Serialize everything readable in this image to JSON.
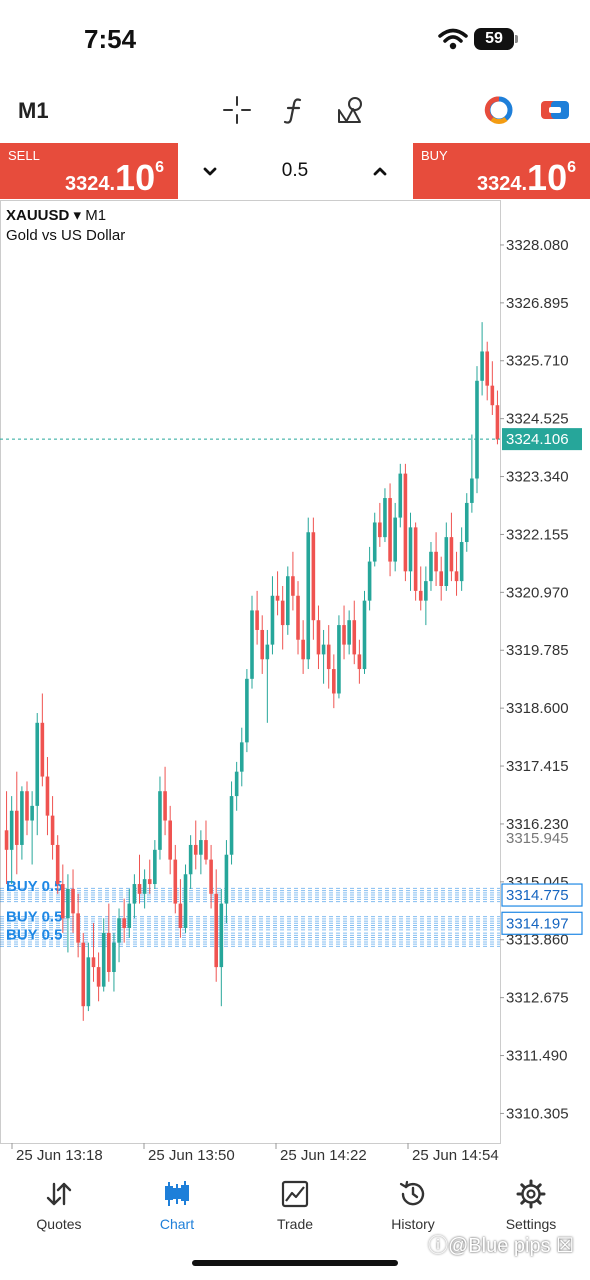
{
  "status_bar": {
    "time": "7:54",
    "battery": "59"
  },
  "toolbar": {
    "timeframe": "M1",
    "icons": [
      "crosshair-icon",
      "function-icon",
      "objects-icon",
      "account-icon",
      "trade-toggle-icon"
    ]
  },
  "trade_panel": {
    "sell": {
      "label": "SELL",
      "price_main": "3324.",
      "price_big": "10",
      "price_sup": "6"
    },
    "buy": {
      "label": "BUY",
      "price_main": "3324.",
      "price_big": "10",
      "price_sup": "6"
    },
    "lot": "0.5"
  },
  "chart": {
    "symbol": "XAUUSD",
    "symbol_arrow": "▾",
    "timeframe": "M1",
    "description": "Gold vs US Dollar",
    "current_price": "3324.106",
    "overlapped_price_label": "3315.945",
    "position_labels": [
      "BUY 0.5",
      "BUY 0.5",
      "BUY 0.5"
    ],
    "colors": {
      "up": "#26a69a",
      "down": "#ef5350",
      "position": "#1e88e5",
      "grid_border": "#cccccc"
    }
  },
  "chart_data": {
    "type": "candlestick",
    "y_tick_labels": [
      "3328.080",
      "3326.895",
      "3325.710",
      "3324.525",
      "3323.340",
      "3322.155",
      "3320.970",
      "3319.785",
      "3318.600",
      "3317.415",
      "3316.230",
      "3315.045",
      "3313.860",
      "3312.675",
      "3311.490",
      "3310.305"
    ],
    "x_tick_labels": [
      "25 Jun 13:18",
      "25 Jun 13:50",
      "25 Jun 14:22",
      "25 Jun 14:54"
    ],
    "ylim": [
      3309.7,
      3329.0
    ],
    "bid_price": 3324.106,
    "position_prices": [
      3314.775,
      3314.197,
      3313.86
    ],
    "highlighted_prices": [
      3314.775,
      3314.197
    ],
    "ohlc": [
      [
        3316.1,
        3316.9,
        3315.0,
        3315.7
      ],
      [
        3315.7,
        3316.8,
        3315.0,
        3316.5
      ],
      [
        3316.5,
        3317.3,
        3315.2,
        3315.8
      ],
      [
        3315.8,
        3317.0,
        3315.5,
        3316.9
      ],
      [
        3316.9,
        3317.1,
        3316.0,
        3316.3
      ],
      [
        3316.3,
        3316.9,
        3315.4,
        3316.6
      ],
      [
        3316.6,
        3318.5,
        3316.0,
        3318.3
      ],
      [
        3318.3,
        3318.9,
        3317.0,
        3317.2
      ],
      [
        3317.2,
        3317.6,
        3316.0,
        3316.4
      ],
      [
        3316.4,
        3316.8,
        3315.5,
        3315.8
      ],
      [
        3315.8,
        3316.0,
        3314.8,
        3315.0
      ],
      [
        3315.0,
        3315.4,
        3314.0,
        3314.3
      ],
      [
        3314.3,
        3315.2,
        3313.6,
        3314.9
      ],
      [
        3314.9,
        3315.3,
        3314.0,
        3314.4
      ],
      [
        3314.4,
        3314.8,
        3313.5,
        3313.8
      ],
      [
        3313.8,
        3314.0,
        3312.2,
        3312.5
      ],
      [
        3312.5,
        3313.8,
        3312.4,
        3313.5
      ],
      [
        3313.5,
        3314.2,
        3313.0,
        3313.3
      ],
      [
        3313.3,
        3313.6,
        3312.6,
        3312.9
      ],
      [
        3312.9,
        3314.3,
        3312.8,
        3314.0
      ],
      [
        3314.0,
        3314.6,
        3313.0,
        3313.2
      ],
      [
        3313.2,
        3314.0,
        3312.8,
        3313.8
      ],
      [
        3313.8,
        3314.5,
        3313.4,
        3314.3
      ],
      [
        3314.3,
        3314.7,
        3313.8,
        3314.1
      ],
      [
        3314.1,
        3314.9,
        3313.9,
        3314.6
      ],
      [
        3314.6,
        3315.2,
        3314.3,
        3315.0
      ],
      [
        3315.0,
        3315.6,
        3314.6,
        3314.8
      ],
      [
        3314.8,
        3315.3,
        3314.5,
        3315.1
      ],
      [
        3315.1,
        3315.5,
        3314.8,
        3315.0
      ],
      [
        3315.0,
        3315.9,
        3314.9,
        3315.7
      ],
      [
        3315.7,
        3317.2,
        3315.5,
        3316.9
      ],
      [
        3316.9,
        3317.4,
        3316.0,
        3316.3
      ],
      [
        3316.3,
        3316.6,
        3315.2,
        3315.5
      ],
      [
        3315.5,
        3315.8,
        3314.4,
        3314.6
      ],
      [
        3314.6,
        3315.1,
        3313.9,
        3314.1
      ],
      [
        3314.1,
        3315.4,
        3314.0,
        3315.2
      ],
      [
        3315.2,
        3316.0,
        3314.9,
        3315.8
      ],
      [
        3315.8,
        3316.3,
        3315.3,
        3315.6
      ],
      [
        3315.6,
        3316.1,
        3315.2,
        3315.9
      ],
      [
        3315.9,
        3316.3,
        3315.4,
        3315.5
      ],
      [
        3315.5,
        3315.8,
        3314.5,
        3314.8
      ],
      [
        3314.8,
        3315.3,
        3313.0,
        3313.3
      ],
      [
        3313.3,
        3314.9,
        3312.5,
        3314.6
      ],
      [
        3314.6,
        3315.9,
        3314.2,
        3315.6
      ],
      [
        3315.6,
        3317.1,
        3315.4,
        3316.8
      ],
      [
        3316.8,
        3317.5,
        3316.5,
        3317.3
      ],
      [
        3317.3,
        3318.2,
        3317.0,
        3317.9
      ],
      [
        3317.9,
        3319.4,
        3317.7,
        3319.2
      ],
      [
        3319.2,
        3320.9,
        3319.0,
        3320.6
      ],
      [
        3320.6,
        3321.0,
        3319.9,
        3320.2
      ],
      [
        3320.2,
        3320.5,
        3319.3,
        3319.6
      ],
      [
        3319.6,
        3320.2,
        3318.3,
        3319.9
      ],
      [
        3319.9,
        3321.3,
        3319.7,
        3320.9
      ],
      [
        3320.9,
        3321.4,
        3320.5,
        3320.8
      ],
      [
        3320.8,
        3321.1,
        3319.8,
        3320.3
      ],
      [
        3320.3,
        3321.5,
        3320.1,
        3321.3
      ],
      [
        3321.3,
        3321.8,
        3320.6,
        3320.9
      ],
      [
        3320.9,
        3321.2,
        3319.7,
        3320.0
      ],
      [
        3320.0,
        3320.4,
        3319.3,
        3319.6
      ],
      [
        3319.6,
        3322.5,
        3319.4,
        3322.2
      ],
      [
        3322.2,
        3322.5,
        3320.0,
        3320.4
      ],
      [
        3320.4,
        3320.7,
        3319.4,
        3319.7
      ],
      [
        3319.7,
        3320.2,
        3319.1,
        3319.9
      ],
      [
        3319.9,
        3320.3,
        3319.0,
        3319.4
      ],
      [
        3319.4,
        3319.7,
        3318.6,
        3318.9
      ],
      [
        3318.9,
        3320.5,
        3318.8,
        3320.3
      ],
      [
        3320.3,
        3320.7,
        3319.6,
        3319.9
      ],
      [
        3319.9,
        3320.6,
        3319.7,
        3320.4
      ],
      [
        3320.4,
        3320.8,
        3319.5,
        3319.7
      ],
      [
        3319.7,
        3320.0,
        3319.1,
        3319.4
      ],
      [
        3319.4,
        3321.0,
        3319.3,
        3320.8
      ],
      [
        3320.8,
        3321.9,
        3320.6,
        3321.6
      ],
      [
        3321.6,
        3322.6,
        3321.5,
        3322.4
      ],
      [
        3322.4,
        3322.8,
        3321.9,
        3322.1
      ],
      [
        3322.1,
        3323.1,
        3322.0,
        3322.9
      ],
      [
        3322.9,
        3323.2,
        3321.3,
        3321.6
      ],
      [
        3321.6,
        3322.8,
        3321.4,
        3322.5
      ],
      [
        3322.5,
        3323.6,
        3322.3,
        3323.4
      ],
      [
        3323.4,
        3323.6,
        3321.2,
        3321.4
      ],
      [
        3321.4,
        3322.6,
        3321.0,
        3322.3
      ],
      [
        3322.3,
        3322.4,
        3320.8,
        3321.0
      ],
      [
        3321.0,
        3321.5,
        3320.6,
        3320.8
      ],
      [
        3320.8,
        3321.5,
        3320.3,
        3321.2
      ],
      [
        3321.2,
        3322.0,
        3321.0,
        3321.8
      ],
      [
        3321.8,
        3322.2,
        3321.1,
        3321.4
      ],
      [
        3321.4,
        3321.7,
        3320.8,
        3321.1
      ],
      [
        3321.1,
        3322.4,
        3321.0,
        3322.1
      ],
      [
        3322.1,
        3322.6,
        3321.2,
        3321.4
      ],
      [
        3321.4,
        3321.8,
        3320.9,
        3321.2
      ],
      [
        3321.2,
        3322.3,
        3321.0,
        3322.0
      ],
      [
        3322.0,
        3323.0,
        3321.8,
        3322.8
      ],
      [
        3322.8,
        3324.2,
        3322.6,
        3323.3
      ],
      [
        3323.3,
        3325.6,
        3323.0,
        3325.3
      ],
      [
        3325.3,
        3326.5,
        3325.0,
        3325.9
      ],
      [
        3325.9,
        3326.1,
        3324.9,
        3325.2
      ],
      [
        3325.2,
        3325.7,
        3324.6,
        3324.8
      ],
      [
        3324.8,
        3325.1,
        3324.0,
        3324.1
      ]
    ]
  },
  "tabs": [
    {
      "label": "Quotes",
      "icon": "quotes-icon",
      "active": false
    },
    {
      "label": "Chart",
      "icon": "chart-icon",
      "active": true
    },
    {
      "label": "Trade",
      "icon": "trade-icon",
      "active": false
    },
    {
      "label": "History",
      "icon": "history-icon",
      "active": false
    },
    {
      "label": "Settings",
      "icon": "settings-icon",
      "active": false
    }
  ],
  "watermark": "ⓘ@Blue pips ☒"
}
